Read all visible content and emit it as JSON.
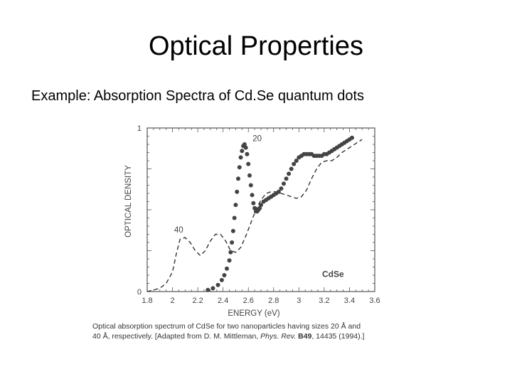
{
  "slide": {
    "title": "Optical Properties",
    "subtitle": "Example: Absorption Spectra of Cd.Se quantum dots"
  },
  "chart_data": {
    "type": "line",
    "xlabel": "ENERGY (eV)",
    "ylabel": "OPTICAL DENSITY",
    "xlim": [
      1.8,
      3.6
    ],
    "ylim": [
      0,
      1
    ],
    "x_ticks": [
      "1.8",
      "2",
      "2.2",
      "2.4",
      "2.6",
      "2.8",
      "3",
      "3.2",
      "3.4",
      "3.6"
    ],
    "y_ticks": [
      "0",
      "1"
    ],
    "grid": false,
    "series": [
      {
        "name": "40",
        "style": "dashed",
        "color": "#333333",
        "x": [
          1.8,
          1.85,
          1.9,
          1.95,
          2.0,
          2.03,
          2.06,
          2.1,
          2.14,
          2.18,
          2.22,
          2.26,
          2.3,
          2.34,
          2.38,
          2.42,
          2.46,
          2.5,
          2.54,
          2.58,
          2.62,
          2.66,
          2.7,
          2.74,
          2.78,
          2.82,
          2.86,
          2.9,
          2.94,
          2.98,
          3.02,
          3.06,
          3.1,
          3.14,
          3.18,
          3.22,
          3.26,
          3.3,
          3.34,
          3.38,
          3.42,
          3.46,
          3.5
        ],
        "y": [
          0.0,
          0.01,
          0.02,
          0.05,
          0.12,
          0.23,
          0.32,
          0.33,
          0.3,
          0.25,
          0.22,
          0.25,
          0.31,
          0.35,
          0.35,
          0.31,
          0.25,
          0.24,
          0.27,
          0.34,
          0.42,
          0.5,
          0.56,
          0.6,
          0.61,
          0.61,
          0.6,
          0.59,
          0.58,
          0.57,
          0.58,
          0.62,
          0.69,
          0.75,
          0.79,
          0.8,
          0.8,
          0.82,
          0.85,
          0.87,
          0.89,
          0.91,
          0.93
        ]
      },
      {
        "name": "20",
        "style": "dotted",
        "color": "#444444",
        "x": [
          2.28,
          2.32,
          2.36,
          2.39,
          2.41,
          2.43,
          2.45,
          2.46,
          2.47,
          2.48,
          2.49,
          2.5,
          2.51,
          2.52,
          2.53,
          2.54,
          2.55,
          2.56,
          2.57,
          2.58,
          2.59,
          2.6,
          2.61,
          2.62,
          2.63,
          2.64,
          2.65,
          2.66,
          2.67,
          2.68,
          2.69,
          2.7,
          2.72,
          2.74,
          2.76,
          2.78,
          2.8,
          2.82,
          2.84,
          2.86,
          2.88,
          2.9,
          2.92,
          2.94,
          2.96,
          2.98,
          3.0,
          3.02,
          3.04,
          3.06,
          3.08,
          3.1,
          3.12,
          3.14,
          3.16,
          3.18,
          3.2,
          3.22,
          3.24,
          3.26,
          3.28,
          3.3,
          3.32,
          3.34,
          3.36,
          3.38,
          3.4,
          3.42
        ],
        "y": [
          0.01,
          0.02,
          0.04,
          0.07,
          0.1,
          0.14,
          0.19,
          0.24,
          0.3,
          0.37,
          0.45,
          0.53,
          0.61,
          0.69,
          0.76,
          0.82,
          0.86,
          0.89,
          0.9,
          0.88,
          0.84,
          0.78,
          0.71,
          0.65,
          0.59,
          0.54,
          0.51,
          0.49,
          0.49,
          0.5,
          0.51,
          0.53,
          0.55,
          0.56,
          0.57,
          0.58,
          0.59,
          0.6,
          0.61,
          0.63,
          0.66,
          0.69,
          0.72,
          0.75,
          0.78,
          0.8,
          0.82,
          0.83,
          0.84,
          0.84,
          0.84,
          0.84,
          0.83,
          0.83,
          0.83,
          0.83,
          0.84,
          0.84,
          0.85,
          0.86,
          0.87,
          0.88,
          0.89,
          0.9,
          0.91,
          0.92,
          0.93,
          0.94
        ]
      }
    ],
    "annotations": [
      {
        "text": "20",
        "x": 2.67,
        "y": 0.92
      },
      {
        "text": "40",
        "x": 2.05,
        "y": 0.36
      },
      {
        "text": "CdSe",
        "x": 3.27,
        "y": 0.09,
        "bold": true
      }
    ]
  },
  "caption": {
    "line1_a": "Optical absorption spectrum of CdSe for two nanoparticles having sizes 20 Å and",
    "line2_a": "40 Å, respectively. [Adapted from D. M. Mittleman, ",
    "journal": "Phys. Rev.",
    "volume": "B49",
    "line2_b": ", 14435 (1994).]"
  }
}
